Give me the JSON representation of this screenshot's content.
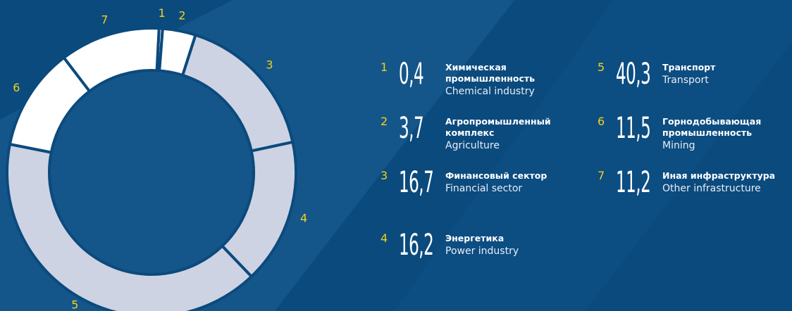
{
  "chart_data": {
    "type": "pie",
    "keys": [
      "1",
      "2",
      "3",
      "4",
      "5",
      "6",
      "7"
    ],
    "categories": [
      "Химическая промышленность",
      "Агропромышленный комплекс",
      "Финансовый сектор",
      "Энергетика",
      "Транспорт",
      "Горнодобывающая промышленность",
      "Иная инфраструктура"
    ],
    "subtitles": [
      "Chemical industry",
      "Agriculture",
      "Financial sector",
      "Power industry",
      "Transport",
      "Mining",
      "Other infrastructure"
    ],
    "values": [
      0.4,
      3.7,
      16.7,
      16.2,
      40.3,
      11.5,
      11.2
    ],
    "value_labels": [
      "0,4",
      "3,7",
      "16,7",
      "16,2",
      "40,3",
      "11,5",
      "11,2"
    ],
    "colors": [
      "#ffffff",
      "#ffffff",
      "#cdd3e3",
      "#cdd3e3",
      "#cdd3e3",
      "#ffffff",
      "#ffffff"
    ]
  }
}
